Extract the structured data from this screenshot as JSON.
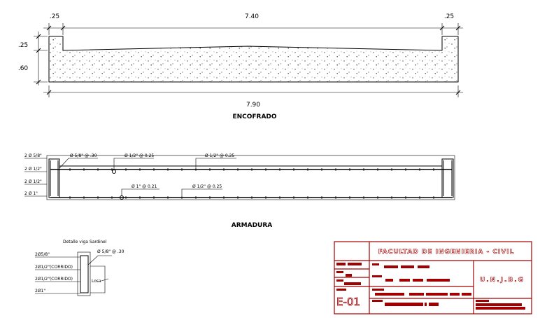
{
  "encofrado": {
    "title": "ENCOFRADO",
    "dims_top": [
      ".25",
      "7.40",
      ".25"
    ],
    "dims_left": [
      ".25",
      ".60"
    ],
    "dim_bottom": "7.90"
  },
  "armadura": {
    "title": "ARMADURA",
    "left_labels": [
      "2 Ø 5/8\"",
      "2 Ø 1/2\"",
      "2 Ø 1/2\"",
      "2 Ø 1\""
    ],
    "callouts": [
      "Ø 5/8\" @ .30",
      "Ø 1/2\" @ 0.25",
      "Ø 1/2\" @ 0.25",
      "Ø 1\" @ 0.21",
      "Ø 1/2\" @ 0.25"
    ]
  },
  "detalle": {
    "title": "Detalle viga Sardinel",
    "labels": [
      "2Ø5/8\"",
      "2Ø1/2\"(CORRIDO)",
      "2Ø1/2\"(CORRIDO)",
      "2Ø1\""
    ],
    "stirrup": "Ø 5/8\" @ .30",
    "slab": "Losa"
  },
  "title_block": {
    "faculty": "FACULTAD DE INGENIERIA - CIVIL",
    "university": "U.N.J.B.G",
    "sheet": "E-01",
    "color": "#a00000"
  }
}
